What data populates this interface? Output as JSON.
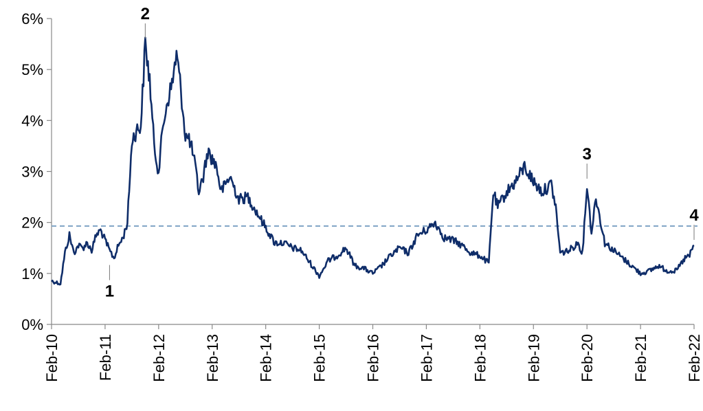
{
  "chart_data": {
    "type": "line",
    "title": "",
    "xlabel": "",
    "ylabel": "",
    "ylim": [
      0,
      6
    ],
    "y_ticks": [
      "0%",
      "1%",
      "2%",
      "3%",
      "4%",
      "5%",
      "6%"
    ],
    "x_ticks": [
      "Feb-10",
      "Feb-11",
      "Feb-12",
      "Feb-13",
      "Feb-14",
      "Feb-15",
      "Feb-16",
      "Feb-17",
      "Feb-18",
      "Feb-19",
      "Feb-20",
      "Feb-21",
      "Feb-22"
    ],
    "grid": false,
    "legend": "none",
    "reference_line": {
      "value": 1.93,
      "style": "dashed",
      "color": "#7fa3c4"
    },
    "series": [
      {
        "color": "#0f2d69",
        "points": [
          [
            "2010-02",
            0.85
          ],
          [
            "2010-04",
            0.8
          ],
          [
            "2010-05",
            1.4
          ],
          [
            "2010-06",
            1.75
          ],
          [
            "2010-07",
            1.4
          ],
          [
            "2010-08",
            1.55
          ],
          [
            "2010-09",
            1.5
          ],
          [
            "2010-10",
            1.6
          ],
          [
            "2010-11",
            1.45
          ],
          [
            "2010-12",
            1.75
          ],
          [
            "2011-01",
            1.85
          ],
          [
            "2011-02",
            1.65
          ],
          [
            "2011-03",
            1.45
          ],
          [
            "2011-04",
            1.3
          ],
          [
            "2011-05",
            1.55
          ],
          [
            "2011-06",
            1.7
          ],
          [
            "2011-07",
            2.0
          ],
          [
            "2011-08",
            3.6
          ],
          [
            "2011-09",
            3.8
          ],
          [
            "2011-10",
            3.9
          ],
          [
            "2011-11",
            5.5
          ],
          [
            "2011-12",
            4.8
          ],
          [
            "2012-01",
            3.5
          ],
          [
            "2012-02",
            3.0
          ],
          [
            "2012-03",
            3.9
          ],
          [
            "2012-04",
            4.4
          ],
          [
            "2012-05",
            4.7
          ],
          [
            "2012-06",
            5.3
          ],
          [
            "2012-07",
            4.6
          ],
          [
            "2012-08",
            3.7
          ],
          [
            "2012-09",
            3.6
          ],
          [
            "2012-10",
            3.2
          ],
          [
            "2012-11",
            2.6
          ],
          [
            "2012-12",
            2.9
          ],
          [
            "2013-01",
            3.4
          ],
          [
            "2013-03",
            3.1
          ],
          [
            "2013-04",
            2.6
          ],
          [
            "2013-06",
            2.9
          ],
          [
            "2013-08",
            2.45
          ],
          [
            "2013-10",
            2.5
          ],
          [
            "2013-12",
            2.2
          ],
          [
            "2014-02",
            1.9
          ],
          [
            "2014-04",
            1.6
          ],
          [
            "2014-06",
            1.6
          ],
          [
            "2014-08",
            1.5
          ],
          [
            "2014-10",
            1.45
          ],
          [
            "2014-12",
            1.2
          ],
          [
            "2015-02",
            0.95
          ],
          [
            "2015-04",
            1.25
          ],
          [
            "2015-06",
            1.35
          ],
          [
            "2015-08",
            1.5
          ],
          [
            "2015-10",
            1.15
          ],
          [
            "2015-12",
            1.1
          ],
          [
            "2016-02",
            1.0
          ],
          [
            "2016-04",
            1.15
          ],
          [
            "2016-06",
            1.35
          ],
          [
            "2016-08",
            1.5
          ],
          [
            "2016-10",
            1.4
          ],
          [
            "2016-12",
            1.75
          ],
          [
            "2017-02",
            1.85
          ],
          [
            "2017-04",
            2.0
          ],
          [
            "2017-06",
            1.7
          ],
          [
            "2017-08",
            1.65
          ],
          [
            "2017-10",
            1.55
          ],
          [
            "2017-12",
            1.4
          ],
          [
            "2018-02",
            1.35
          ],
          [
            "2018-04",
            1.2
          ],
          [
            "2018-05",
            2.6
          ],
          [
            "2018-06",
            2.3
          ],
          [
            "2018-08",
            2.6
          ],
          [
            "2018-10",
            2.8
          ],
          [
            "2018-12",
            3.1
          ],
          [
            "2019-02",
            2.8
          ],
          [
            "2019-04",
            2.6
          ],
          [
            "2019-06",
            2.75
          ],
          [
            "2019-07",
            2.3
          ],
          [
            "2019-08",
            1.4
          ],
          [
            "2019-10",
            1.45
          ],
          [
            "2019-12",
            1.6
          ],
          [
            "2020-01",
            1.4
          ],
          [
            "2020-02",
            2.75
          ],
          [
            "2020-03",
            1.8
          ],
          [
            "2020-04",
            2.5
          ],
          [
            "2020-06",
            1.6
          ],
          [
            "2020-08",
            1.45
          ],
          [
            "2020-10",
            1.3
          ],
          [
            "2020-12",
            1.15
          ],
          [
            "2021-02",
            1.0
          ],
          [
            "2021-04",
            1.05
          ],
          [
            "2021-06",
            1.15
          ],
          [
            "2021-08",
            1.05
          ],
          [
            "2021-10",
            1.05
          ],
          [
            "2021-12",
            1.3
          ],
          [
            "2022-01",
            1.35
          ],
          [
            "2022-02",
            1.55
          ]
        ]
      }
    ],
    "annotations": [
      {
        "label": "1",
        "x": "2011-03",
        "y": 1.3,
        "position": "below"
      },
      {
        "label": "2",
        "x": "2011-11",
        "y": 5.5,
        "position": "above"
      },
      {
        "label": "3",
        "x": "2020-02",
        "y": 2.75,
        "position": "above"
      },
      {
        "label": "4",
        "x": "2022-02",
        "y": 1.55,
        "position": "above"
      }
    ]
  }
}
